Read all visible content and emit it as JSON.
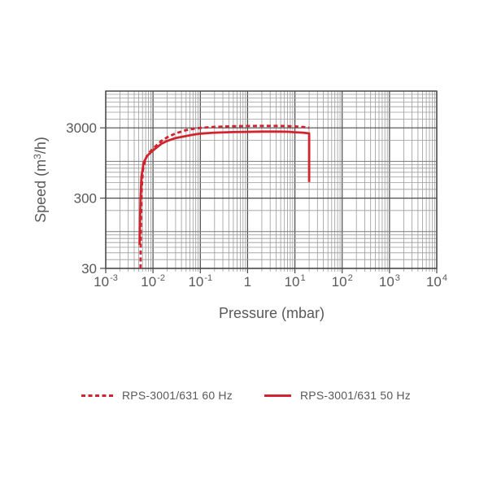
{
  "chart_data": {
    "type": "line",
    "title": "",
    "xlabel": "Pressure (mbar)",
    "ylabel": "Speed (m³/h)",
    "ylabel_parts": [
      {
        "t": "Speed (m"
      },
      {
        "t": "3",
        "sup": true
      },
      {
        "t": "/h)"
      }
    ],
    "x_scale": "log",
    "y_scale": "log",
    "xlim": [
      0.001,
      10000
    ],
    "ylim": [
      30,
      10000
    ],
    "grid": "log-log both, minor decade subdivisions",
    "legend_position": "bottom",
    "x_ticks": [
      {
        "value": 0.001,
        "base": "10",
        "exp": "-3"
      },
      {
        "value": 0.01,
        "base": "10",
        "exp": "-2"
      },
      {
        "value": 0.1,
        "base": "10",
        "exp": "-1"
      },
      {
        "value": 1,
        "base": "1",
        "exp": ""
      },
      {
        "value": 10,
        "base": "10",
        "exp": "1"
      },
      {
        "value": 100,
        "base": "10",
        "exp": "2"
      },
      {
        "value": 1000,
        "base": "10",
        "exp": "3"
      },
      {
        "value": 10000,
        "base": "10",
        "exp": "4"
      }
    ],
    "y_ticks": [
      {
        "value": 3000,
        "label": "3000"
      },
      {
        "value": 300,
        "label": "300"
      },
      {
        "value": 30,
        "label": "30"
      }
    ],
    "series": [
      {
        "name": "RPS-3001/631 60 Hz",
        "style": "dashed",
        "color": "#d2232e",
        "points": [
          [
            0.00545,
            30
          ],
          [
            0.0055,
            70
          ],
          [
            0.0056,
            180
          ],
          [
            0.00575,
            400
          ],
          [
            0.0061,
            750
          ],
          [
            0.007,
            1100
          ],
          [
            0.0085,
            1350
          ],
          [
            0.01,
            1520
          ],
          [
            0.015,
            1950
          ],
          [
            0.02,
            2200
          ],
          [
            0.03,
            2500
          ],
          [
            0.05,
            2780
          ],
          [
            0.07,
            2900
          ],
          [
            0.1,
            3000
          ],
          [
            0.2,
            3100
          ],
          [
            0.5,
            3160
          ],
          [
            1,
            3190
          ],
          [
            2,
            3200
          ],
          [
            4,
            3200
          ],
          [
            7,
            3180
          ],
          [
            10,
            3150
          ],
          [
            15,
            3080
          ],
          [
            20,
            3010
          ]
        ]
      },
      {
        "name": "RPS-3001/631 50 Hz",
        "style": "solid",
        "color": "#d2232e",
        "points": [
          [
            0.0052,
            65
          ],
          [
            0.0053,
            120
          ],
          [
            0.00545,
            300
          ],
          [
            0.0057,
            600
          ],
          [
            0.0063,
            950
          ],
          [
            0.0075,
            1200
          ],
          [
            0.01,
            1430
          ],
          [
            0.015,
            1780
          ],
          [
            0.02,
            1950
          ],
          [
            0.03,
            2150
          ],
          [
            0.05,
            2300
          ],
          [
            0.07,
            2400
          ],
          [
            0.1,
            2480
          ],
          [
            0.2,
            2560
          ],
          [
            0.5,
            2610
          ],
          [
            1,
            2630
          ],
          [
            2,
            2650
          ],
          [
            4,
            2650
          ],
          [
            7,
            2640
          ],
          [
            10,
            2600
          ],
          [
            15,
            2560
          ],
          [
            20,
            2500
          ],
          [
            20,
            510
          ]
        ]
      }
    ],
    "colors": {
      "curve": "#d2232e",
      "grid_minor": "#9b9b9b",
      "grid_medium": "#7a7a7a",
      "grid_major": "#4a4a4a",
      "frame": "#4a4a4a",
      "text": "#58595b"
    }
  }
}
